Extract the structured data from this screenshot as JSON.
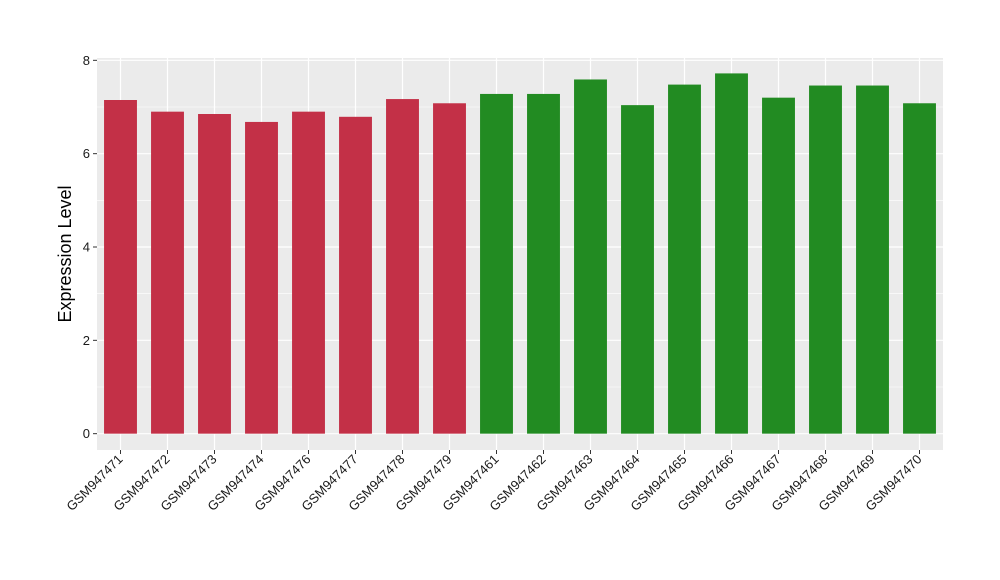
{
  "chart_data": {
    "type": "bar",
    "title": "",
    "xlabel": "",
    "ylabel": "Expression Level",
    "ylim": [
      -0.35,
      8.05
    ],
    "yticks": [
      0,
      2,
      4,
      6,
      8
    ],
    "grid": true,
    "categories": [
      "GSM947471",
      "GSM947472",
      "GSM947473",
      "GSM947474",
      "GSM947476",
      "GSM947477",
      "GSM947478",
      "GSM947479",
      "GSM947461",
      "GSM947462",
      "GSM947463",
      "GSM947464",
      "GSM947465",
      "GSM947466",
      "GSM947467",
      "GSM947468",
      "GSM947469",
      "GSM947470"
    ],
    "values": [
      7.15,
      6.9,
      6.85,
      6.68,
      6.9,
      6.79,
      7.17,
      7.08,
      7.28,
      7.28,
      7.59,
      7.04,
      7.48,
      7.72,
      7.2,
      7.46,
      7.46,
      7.08
    ],
    "bar_colors": [
      "#c33047",
      "#c33047",
      "#c33047",
      "#c33047",
      "#c33047",
      "#c33047",
      "#c33047",
      "#c33047",
      "#228b22",
      "#228b22",
      "#228b22",
      "#228b22",
      "#228b22",
      "#228b22",
      "#228b22",
      "#228b22",
      "#228b22",
      "#228b22"
    ],
    "panel_background": "#ebebeb",
    "grid_color": "#ffffff"
  }
}
